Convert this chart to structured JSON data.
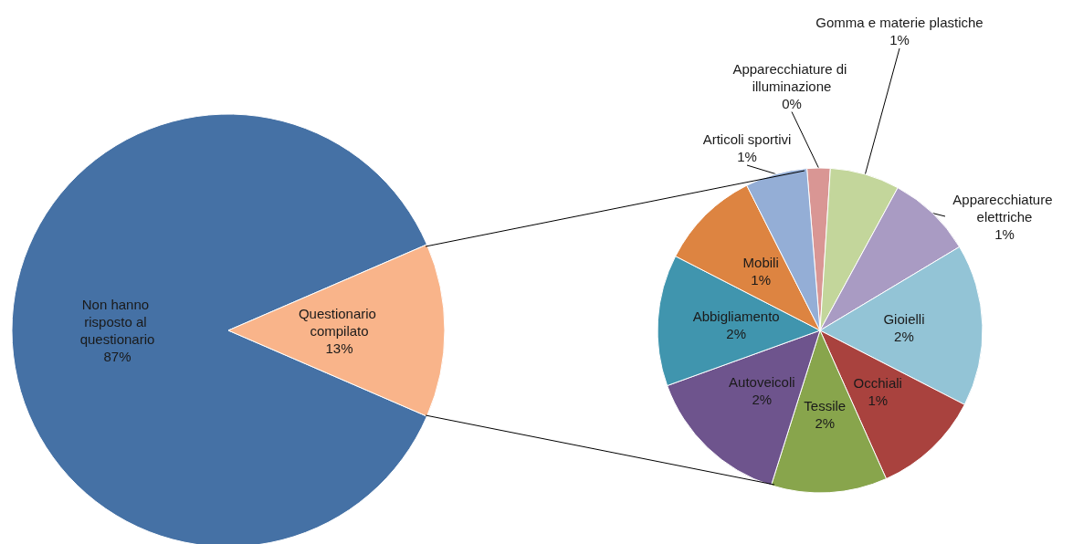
{
  "chart_data": [
    {
      "type": "pie",
      "categories": [
        "Non hanno risposto al questionario",
        "Questionario compilato"
      ],
      "values": [
        87,
        13
      ],
      "value_labels": [
        "87%",
        "13%"
      ],
      "colors": [
        "#4571a5",
        "#f9b48a"
      ]
    },
    {
      "type": "pie",
      "categories": [
        "Apparecchiature di illuminazione",
        "Gomma e materie plastiche",
        "Apparecchiature elettriche",
        "Gioielli",
        "Occhiali",
        "Tessile",
        "Autoveicoli",
        "Abbigliamento",
        "Mobili",
        "Articoli sportivi"
      ],
      "values": [
        0.3,
        0.9,
        1.1,
        2.1,
        1.4,
        1.5,
        1.9,
        1.7,
        1.3,
        0.8
      ],
      "value_labels": [
        "0%",
        "1%",
        "1%",
        "2%",
        "1%",
        "2%",
        "2%",
        "2%",
        "1%",
        "1%"
      ],
      "colors": [
        "#d99694",
        "#c3d69b",
        "#a99bc3",
        "#93c4d6",
        "#a9423e",
        "#88a54c",
        "#6e548d",
        "#4095ae",
        "#dd8441",
        "#94aed6"
      ]
    }
  ]
}
